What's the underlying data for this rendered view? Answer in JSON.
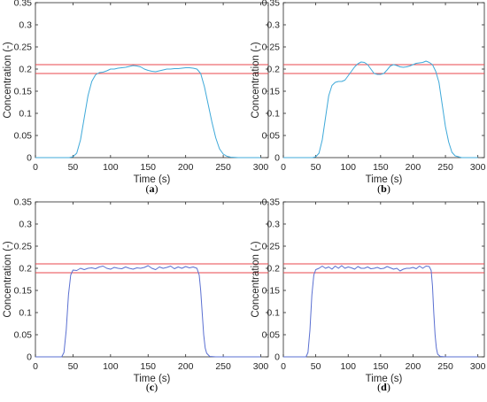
{
  "colors": {
    "axis": "#262626",
    "threshold": "#e8474c",
    "series_light_blue": "#3fa9d9",
    "series_blue": "#5a6fd1"
  },
  "chart_data": [
    {
      "label": "(a)",
      "type": "line",
      "xlabel": "Time (s)",
      "ylabel": "Concentration (-)",
      "xlim": [
        0,
        310
      ],
      "ylim": [
        0,
        0.35
      ],
      "xticks": [
        0,
        50,
        100,
        150,
        200,
        250,
        300
      ],
      "yticks": [
        0,
        0.05,
        0.1,
        0.15,
        0.2,
        0.25,
        0.3,
        0.35
      ],
      "grid": false,
      "reference_lines": [
        0.21,
        0.19
      ],
      "series": [
        {
          "color": "#3fa9d9",
          "x": [
            0,
            45,
            50,
            55,
            60,
            65,
            70,
            75,
            80,
            85,
            90,
            95,
            100,
            105,
            110,
            115,
            120,
            125,
            130,
            135,
            140,
            145,
            150,
            155,
            160,
            165,
            170,
            175,
            180,
            185,
            190,
            195,
            200,
            205,
            210,
            215,
            220,
            225,
            230,
            235,
            240,
            245,
            250,
            255,
            260,
            270,
            300
          ],
          "y": [
            0,
            0,
            0.002,
            0.01,
            0.04,
            0.09,
            0.14,
            0.172,
            0.187,
            0.192,
            0.193,
            0.196,
            0.2,
            0.2,
            0.202,
            0.203,
            0.204,
            0.206,
            0.208,
            0.207,
            0.205,
            0.2,
            0.197,
            0.195,
            0.194,
            0.196,
            0.198,
            0.2,
            0.2,
            0.201,
            0.201,
            0.202,
            0.203,
            0.203,
            0.202,
            0.2,
            0.19,
            0.16,
            0.12,
            0.08,
            0.045,
            0.02,
            0.008,
            0.003,
            0.001,
            0,
            0
          ]
        }
      ]
    },
    {
      "label": "(b)",
      "type": "line",
      "xlabel": "Time (s)",
      "ylabel": "Concentration (-)",
      "xlim": [
        0,
        310
      ],
      "ylim": [
        0,
        0.35
      ],
      "xticks": [
        0,
        50,
        100,
        150,
        200,
        250,
        300
      ],
      "yticks": [
        0,
        0.05,
        0.1,
        0.15,
        0.2,
        0.25,
        0.3,
        0.35
      ],
      "grid": false,
      "reference_lines": [
        0.21,
        0.19
      ],
      "series": [
        {
          "color": "#3fa9d9",
          "x": [
            0,
            45,
            50,
            55,
            60,
            65,
            70,
            75,
            80,
            85,
            90,
            95,
            100,
            105,
            110,
            115,
            120,
            125,
            130,
            135,
            140,
            145,
            150,
            155,
            160,
            165,
            170,
            175,
            180,
            185,
            190,
            195,
            200,
            205,
            210,
            215,
            220,
            225,
            230,
            235,
            240,
            245,
            250,
            255,
            260,
            265,
            275,
            300
          ],
          "y": [
            0,
            0,
            0.002,
            0.01,
            0.04,
            0.09,
            0.14,
            0.163,
            0.17,
            0.172,
            0.172,
            0.175,
            0.185,
            0.195,
            0.205,
            0.212,
            0.216,
            0.215,
            0.21,
            0.2,
            0.19,
            0.188,
            0.188,
            0.19,
            0.198,
            0.207,
            0.21,
            0.208,
            0.205,
            0.204,
            0.205,
            0.207,
            0.21,
            0.213,
            0.214,
            0.215,
            0.218,
            0.215,
            0.21,
            0.195,
            0.17,
            0.12,
            0.07,
            0.035,
            0.012,
            0.004,
            0,
            0
          ]
        }
      ]
    },
    {
      "label": "(c)",
      "type": "line",
      "xlabel": "Time (s)",
      "ylabel": "Concentration (-)",
      "xlim": [
        0,
        310
      ],
      "ylim": [
        0,
        0.35
      ],
      "xticks": [
        0,
        50,
        100,
        150,
        200,
        250,
        300
      ],
      "yticks": [
        0,
        0.05,
        0.1,
        0.15,
        0.2,
        0.25,
        0.3,
        0.35
      ],
      "grid": false,
      "reference_lines": [
        0.21,
        0.19
      ],
      "series": [
        {
          "color": "#5a6fd1",
          "x": [
            0,
            35,
            38,
            41,
            44,
            47,
            50,
            55,
            60,
            65,
            70,
            75,
            80,
            85,
            90,
            95,
            100,
            105,
            110,
            115,
            120,
            125,
            130,
            135,
            140,
            145,
            150,
            155,
            160,
            165,
            170,
            175,
            180,
            185,
            190,
            195,
            200,
            205,
            210,
            215,
            218,
            220,
            222,
            224,
            226,
            228,
            232,
            240,
            300
          ],
          "y": [
            0,
            0,
            0.01,
            0.06,
            0.14,
            0.185,
            0.196,
            0.195,
            0.2,
            0.197,
            0.2,
            0.201,
            0.199,
            0.203,
            0.205,
            0.2,
            0.198,
            0.202,
            0.2,
            0.199,
            0.203,
            0.2,
            0.198,
            0.201,
            0.2,
            0.202,
            0.206,
            0.2,
            0.197,
            0.203,
            0.2,
            0.202,
            0.205,
            0.199,
            0.203,
            0.2,
            0.204,
            0.201,
            0.203,
            0.2,
            0.185,
            0.15,
            0.1,
            0.05,
            0.02,
            0.008,
            0.001,
            0,
            0
          ]
        }
      ]
    },
    {
      "label": "(d)",
      "type": "line",
      "xlabel": "Time (s)",
      "ylabel": "Concentration (-)",
      "xlim": [
        0,
        310
      ],
      "ylim": [
        0,
        0.35
      ],
      "xticks": [
        0,
        50,
        100,
        150,
        200,
        250,
        300
      ],
      "yticks": [
        0,
        0.05,
        0.1,
        0.15,
        0.2,
        0.25,
        0.3,
        0.35
      ],
      "grid": false,
      "reference_lines": [
        0.21,
        0.19
      ],
      "series": [
        {
          "color": "#5a6fd1",
          "x": [
            0,
            35,
            38,
            41,
            44,
            47,
            50,
            55,
            60,
            65,
            70,
            75,
            80,
            85,
            90,
            95,
            100,
            105,
            110,
            115,
            120,
            125,
            130,
            135,
            140,
            145,
            150,
            155,
            160,
            165,
            170,
            175,
            180,
            185,
            190,
            195,
            200,
            205,
            210,
            215,
            220,
            225,
            228,
            230,
            232,
            234,
            236,
            238,
            242,
            250,
            300
          ],
          "y": [
            0,
            0,
            0.01,
            0.06,
            0.14,
            0.185,
            0.197,
            0.2,
            0.205,
            0.2,
            0.203,
            0.198,
            0.205,
            0.2,
            0.206,
            0.2,
            0.203,
            0.201,
            0.198,
            0.204,
            0.2,
            0.2,
            0.203,
            0.199,
            0.2,
            0.202,
            0.199,
            0.2,
            0.204,
            0.201,
            0.198,
            0.2,
            0.194,
            0.198,
            0.2,
            0.2,
            0.202,
            0.199,
            0.205,
            0.2,
            0.205,
            0.204,
            0.195,
            0.16,
            0.1,
            0.05,
            0.02,
            0.006,
            0.001,
            0,
            0
          ]
        }
      ]
    }
  ]
}
